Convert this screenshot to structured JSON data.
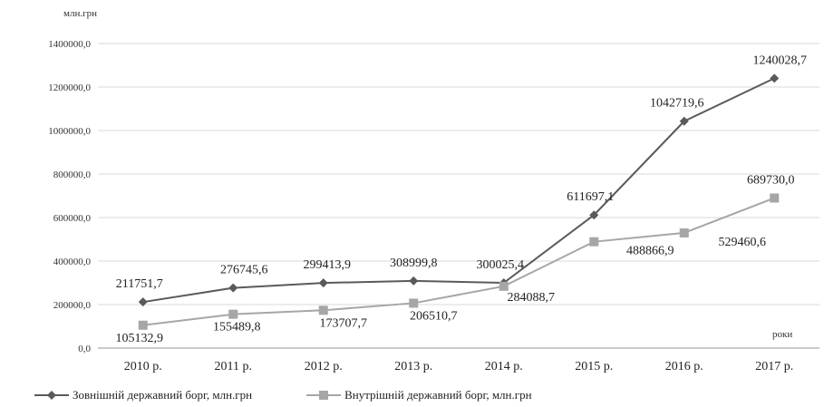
{
  "chart_data": {
    "type": "line",
    "ylabel": "млн.грн",
    "xlabel": "роки",
    "ylim": [
      0,
      1400000
    ],
    "yticks": [
      "0,0",
      "200000,0",
      "400000,0",
      "600000,0",
      "800000,0",
      "1000000,0",
      "1200000,0",
      "1400000,0"
    ],
    "categories": [
      "2010 р.",
      "2011 р.",
      "2012 р.",
      "2013 р.",
      "2014 р.",
      "2015 р.",
      "2016 р.",
      "2017 р."
    ],
    "grid": true,
    "legend": "bottom",
    "series": [
      {
        "name": "Зовнішній державний борг, млн.грн",
        "color": "#5a5a5a",
        "marker": "diamond",
        "values": [
          211751.7,
          276745.6,
          299413.9,
          308999.8,
          300025.4,
          611697.1,
          1042719.6,
          1240028.7
        ],
        "labels": [
          "211751,7",
          "276745,6",
          "299413,9",
          "308999,8",
          "300025,4",
          "611697,1",
          "1042719,6",
          "1240028,7"
        ]
      },
      {
        "name": "Внутрішній державний борг, млн.грн",
        "color": "#a6a6a6",
        "marker": "square",
        "values": [
          105132.9,
          155489.8,
          173707.7,
          206510.7,
          284088.7,
          488866.9,
          529460.6,
          689730.0
        ],
        "labels": [
          "105132,9",
          "155489,8",
          "173707,7",
          "206510,7",
          "284088,7",
          "488866,9",
          "529460,6",
          "689730,0"
        ]
      }
    ]
  }
}
